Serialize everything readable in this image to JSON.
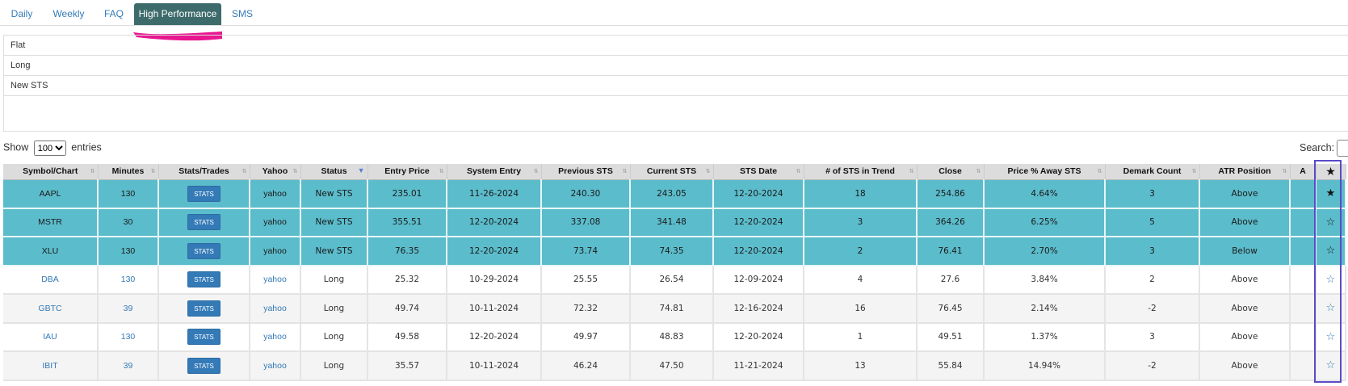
{
  "tabs": [
    {
      "label": "Daily"
    },
    {
      "label": "Weekly"
    },
    {
      "label": "FAQ"
    },
    {
      "label": "High Performance",
      "active": true
    },
    {
      "label": "SMS"
    }
  ],
  "filters": [
    "Flat",
    "Long",
    "New STS"
  ],
  "show_entries": {
    "prefix": "Show",
    "value": "100",
    "suffix": "entries",
    "options": [
      "100"
    ]
  },
  "search": {
    "label": "Search:"
  },
  "table": {
    "headers": [
      "Symbol/Chart",
      "Minutes",
      "Stats/Trades",
      "Yahoo",
      "Status",
      "Entry Price",
      "System Entry",
      "Previous STS",
      "Current STS",
      "STS Date",
      "# of STS in Trend",
      "Close",
      "Price % Away STS",
      "Demark Count",
      "ATR Position",
      "A",
      "★"
    ],
    "stats_label": "STATS",
    "rows": [
      {
        "symbol": "AAPL",
        "minutes": "130",
        "yahoo": "yahoo",
        "status": "New STS",
        "entry_price": "235.01",
        "system_entry": "11-26-2024",
        "previous_sts": "240.30",
        "current_sts": "243.05",
        "sts_date": "12-20-2024",
        "sts_in_trend": "18",
        "close": "254.86",
        "price_away": "4.64%",
        "demark": "3",
        "atr": "Above",
        "a": "",
        "star": "★",
        "highlighted": true
      },
      {
        "symbol": "MSTR",
        "minutes": "30",
        "yahoo": "yahoo",
        "status": "New STS",
        "entry_price": "355.51",
        "system_entry": "12-20-2024",
        "previous_sts": "337.08",
        "current_sts": "341.48",
        "sts_date": "12-20-2024",
        "sts_in_trend": "3",
        "close": "364.26",
        "price_away": "6.25%",
        "demark": "5",
        "atr": "Above",
        "a": "",
        "star": "☆",
        "highlighted": true
      },
      {
        "symbol": "XLU",
        "minutes": "130",
        "yahoo": "yahoo",
        "status": "New STS",
        "entry_price": "76.35",
        "system_entry": "12-20-2024",
        "previous_sts": "73.74",
        "current_sts": "74.35",
        "sts_date": "12-20-2024",
        "sts_in_trend": "2",
        "close": "76.41",
        "price_away": "2.70%",
        "demark": "3",
        "atr": "Below",
        "a": "",
        "star": "☆",
        "highlighted": true
      },
      {
        "symbol": "DBA",
        "minutes": "130",
        "yahoo": "yahoo",
        "status": "Long",
        "entry_price": "25.32",
        "system_entry": "10-29-2024",
        "previous_sts": "25.55",
        "current_sts": "26.54",
        "sts_date": "12-09-2024",
        "sts_in_trend": "4",
        "close": "27.6",
        "price_away": "3.84%",
        "demark": "2",
        "atr": "Above",
        "a": "",
        "star": "☆",
        "highlighted": false
      },
      {
        "symbol": "GBTC",
        "minutes": "39",
        "yahoo": "yahoo",
        "status": "Long",
        "entry_price": "49.74",
        "system_entry": "10-11-2024",
        "previous_sts": "72.32",
        "current_sts": "74.81",
        "sts_date": "12-16-2024",
        "sts_in_trend": "16",
        "close": "76.45",
        "price_away": "2.14%",
        "demark": "-2",
        "atr": "Above",
        "a": "",
        "star": "☆",
        "highlighted": false
      },
      {
        "symbol": "IAU",
        "minutes": "130",
        "yahoo": "yahoo",
        "status": "Long",
        "entry_price": "49.58",
        "system_entry": "12-20-2024",
        "previous_sts": "49.97",
        "current_sts": "48.83",
        "sts_date": "12-20-2024",
        "sts_in_trend": "1",
        "close": "49.51",
        "price_away": "1.37%",
        "demark": "3",
        "atr": "Above",
        "a": "",
        "star": "☆",
        "highlighted": false
      },
      {
        "symbol": "IBIT",
        "minutes": "39",
        "yahoo": "yahoo",
        "status": "Long",
        "entry_price": "35.57",
        "system_entry": "10-11-2024",
        "previous_sts": "46.24",
        "current_sts": "47.50",
        "sts_date": "11-21-2024",
        "sts_in_trend": "13",
        "close": "55.84",
        "price_away": "14.94%",
        "demark": "-2",
        "atr": "Above",
        "a": "",
        "star": "☆",
        "highlighted": false
      }
    ]
  },
  "colors": {
    "active_tab": "#3d6b6b",
    "highlight_row": "#5bbccb",
    "link": "#337ab7",
    "annotation_pink": "#e8178f",
    "annotation_outline": "#5a4bc7"
  }
}
